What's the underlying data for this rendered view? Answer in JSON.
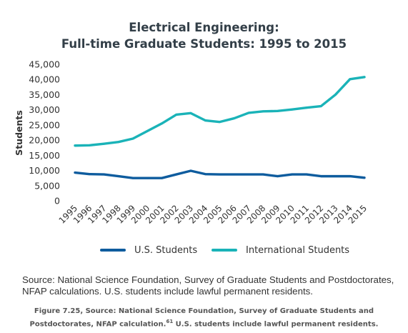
{
  "chart_data": {
    "type": "line",
    "title_line1": "Electrical Engineering:",
    "title_line2": "Full-time Graduate Students: 1995 to 2015",
    "ylabel": "Students",
    "xlabel": "",
    "ylim": [
      0,
      45000
    ],
    "y_ticks": [
      "0",
      "5,000",
      "10,000",
      "15,000",
      "20,000",
      "25,000",
      "30,000",
      "35,000",
      "40,000",
      "45,000"
    ],
    "y_tick_values": [
      0,
      5000,
      10000,
      15000,
      20000,
      25000,
      30000,
      35000,
      40000,
      45000
    ],
    "grid": false,
    "legend_position": "bottom",
    "categories": [
      "1995",
      "1996",
      "1997",
      "1998",
      "1999",
      "2000",
      "2001",
      "2002",
      "2003",
      "2004",
      "2005",
      "2006",
      "2007",
      "2008",
      "2009",
      "2010",
      "2011",
      "2012",
      "2013",
      "2014",
      "2015"
    ],
    "series": [
      {
        "name": "U.S. Students",
        "color": "#0e5c9e",
        "values": [
          9300,
          8800,
          8700,
          8100,
          7500,
          7500,
          7500,
          8700,
          9900,
          8800,
          8700,
          8700,
          8700,
          8700,
          8100,
          8700,
          8700,
          8100,
          8100,
          8100,
          7600
        ]
      },
      {
        "name": "International Students",
        "color": "#1ab3b8",
        "values": [
          18200,
          18300,
          18800,
          19400,
          20500,
          23000,
          25500,
          28400,
          28900,
          26500,
          26000,
          27200,
          29000,
          29500,
          29600,
          30100,
          30700,
          31200,
          35000,
          40100,
          40800
        ]
      }
    ]
  },
  "source_note": "Source: National Science Foundation, Survey of Graduate Students and Postdoctorates, NFAP calculations. U.S. students include lawful permanent residents.",
  "caption": {
    "before": "Figure 7.25, Source: National Science Foundation, Survey of Graduate Students and Postdoctorates, NFAP calculation.",
    "sup": "61",
    "after": " U.S. students include lawful permanent residents."
  }
}
